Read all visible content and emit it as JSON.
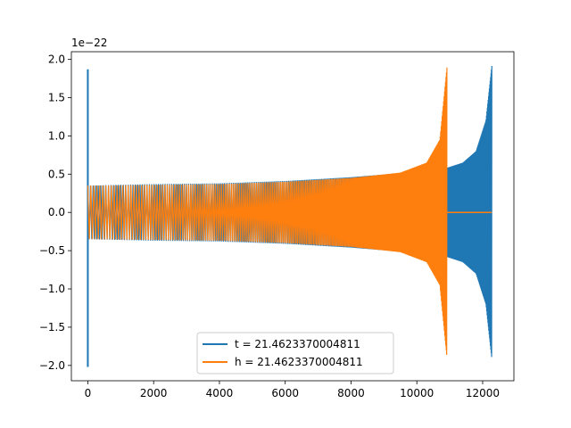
{
  "chart_data": {
    "type": "line",
    "title": "",
    "xlabel": "",
    "ylabel": "",
    "y_offset_text": "1e−22",
    "xlim": [
      -500,
      12950
    ],
    "ylim": [
      -2.2,
      2.1
    ],
    "x_ticks": [
      0,
      2000,
      4000,
      6000,
      8000,
      10000,
      12000
    ],
    "x_tick_labels": [
      "0",
      "2000",
      "4000",
      "6000",
      "8000",
      "10000",
      "12000"
    ],
    "y_ticks": [
      -2.0,
      -1.5,
      -1.0,
      -0.5,
      0.0,
      0.5,
      1.0,
      1.5,
      2.0
    ],
    "y_tick_labels": [
      "−2.0",
      "−1.5",
      "−1.0",
      "−0.5",
      "0.0",
      "0.5",
      "1.0",
      "1.5",
      "2.0"
    ],
    "grid": false,
    "legend_position": "bottom-center",
    "series": [
      {
        "name": "t = 21.4623370004811",
        "color": "#1f77b4",
        "x_range": [
          0,
          12280
        ],
        "initial_spike": {
          "x": 0,
          "min": -2.02,
          "max": 1.87
        },
        "envelope": [
          {
            "x": 0,
            "amp": 0.35
          },
          {
            "x": 2000,
            "amp": 0.37
          },
          {
            "x": 4000,
            "amp": 0.38
          },
          {
            "x": 6000,
            "amp": 0.41
          },
          {
            "x": 8000,
            "amp": 0.46
          },
          {
            "x": 10000,
            "amp": 0.53
          },
          {
            "x": 10900,
            "amp": 0.58
          },
          {
            "x": 11400,
            "amp": 0.65
          },
          {
            "x": 11800,
            "amp": 0.8
          },
          {
            "x": 12100,
            "amp": 1.2
          },
          {
            "x": 12280,
            "amp": 1.92
          }
        ]
      },
      {
        "name": "h = 21.4623370004811",
        "color": "#ff7f0e",
        "x_range": [
          0,
          12280
        ],
        "merger_x": 10920,
        "envelope": [
          {
            "x": 0,
            "amp": 0.35
          },
          {
            "x": 2000,
            "amp": 0.36
          },
          {
            "x": 4000,
            "amp": 0.37
          },
          {
            "x": 6000,
            "amp": 0.4
          },
          {
            "x": 8000,
            "amp": 0.45
          },
          {
            "x": 9500,
            "amp": 0.52
          },
          {
            "x": 10300,
            "amp": 0.65
          },
          {
            "x": 10700,
            "amp": 0.95
          },
          {
            "x": 10920,
            "amp": 1.92
          }
        ],
        "post_merger_value": 0.0
      }
    ]
  }
}
